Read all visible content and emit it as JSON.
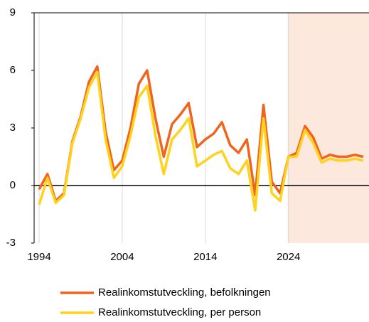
{
  "chart_data": {
    "type": "line",
    "x": [
      1994,
      1995,
      1996,
      1997,
      1998,
      1999,
      2000,
      2001,
      2002,
      2003,
      2004,
      2005,
      2006,
      2007,
      2008,
      2009,
      2010,
      2011,
      2012,
      2013,
      2014,
      2015,
      2016,
      2017,
      2018,
      2019,
      2020,
      2021,
      2022,
      2023,
      2024,
      2025,
      2026,
      2027,
      2028,
      2029,
      2030,
      2031,
      2032,
      2033
    ],
    "series": [
      {
        "name": "Realinkomstutveckling, befolkningen",
        "color": "#f0641e",
        "values": [
          -0.2,
          0.6,
          -0.8,
          -0.4,
          2.3,
          3.6,
          5.4,
          6.2,
          2.8,
          0.8,
          1.3,
          3.0,
          5.3,
          6.0,
          3.5,
          1.5,
          3.2,
          3.7,
          4.3,
          2.0,
          2.4,
          2.7,
          3.3,
          2.1,
          1.7,
          2.4,
          -0.5,
          4.2,
          0.2,
          -0.4,
          1.5,
          1.7,
          3.1,
          2.5,
          1.4,
          1.6,
          1.5,
          1.5,
          1.6,
          1.5
        ]
      },
      {
        "name": "Realinkomstutveckling, per person",
        "color": "#ffd21e",
        "values": [
          -1.0,
          0.4,
          -0.9,
          -0.5,
          2.2,
          3.5,
          5.1,
          5.9,
          2.4,
          0.4,
          1.0,
          2.6,
          4.6,
          5.2,
          2.6,
          0.6,
          2.4,
          2.9,
          3.5,
          1.0,
          1.3,
          1.6,
          1.8,
          0.9,
          0.6,
          1.3,
          -1.3,
          3.5,
          -0.4,
          -0.8,
          1.5,
          1.5,
          2.9,
          2.2,
          1.2,
          1.4,
          1.3,
          1.3,
          1.4,
          1.3
        ]
      }
    ],
    "xlim": [
      1993.4,
      2033.7
    ],
    "xticks": [
      1994,
      2004,
      2014,
      2024
    ],
    "ylim": [
      -3,
      9
    ],
    "yticks": [
      -3,
      0,
      3,
      6,
      9
    ],
    "shaded_region": [
      2023.9,
      2033.7
    ],
    "shaded_color": "#fde8de",
    "grid": true,
    "legend": "bottom"
  }
}
